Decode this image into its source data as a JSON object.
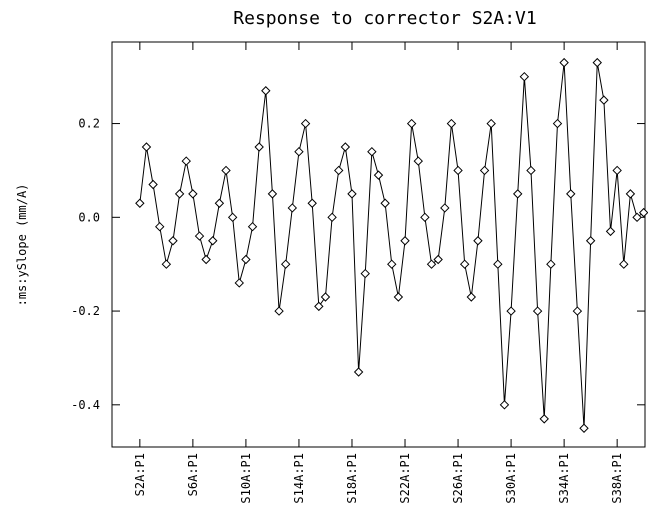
{
  "chart_data": {
    "type": "line",
    "title": "Response to corrector S2A:V1",
    "y_label": ":ms:ySlope (mm/A)",
    "x": [
      2,
      2.5,
      3,
      3.5,
      4,
      4.5,
      5,
      5.5,
      6,
      6.5,
      7,
      7.5,
      8,
      8.5,
      9,
      9.5,
      10,
      10.5,
      11,
      11.5,
      12,
      12.5,
      13,
      13.5,
      14,
      14.5,
      15,
      15.5,
      16,
      16.5,
      17,
      17.5,
      18,
      18.5,
      19,
      19.5,
      20,
      20.5,
      21,
      21.5,
      22,
      22.5,
      23,
      23.5,
      24,
      24.5,
      25,
      25.5,
      26,
      26.5,
      27,
      27.5,
      28,
      28.5,
      29,
      29.5,
      30,
      30.5,
      31,
      31.5,
      32,
      32.5,
      33,
      33.5,
      34,
      34.5,
      35,
      35.5,
      36,
      36.5,
      37,
      37.5,
      38,
      38.5,
      39,
      39.5,
      40
    ],
    "values": [
      0.03,
      0.15,
      0.07,
      -0.02,
      -0.1,
      -0.05,
      0.05,
      0.12,
      0.05,
      -0.04,
      -0.09,
      -0.05,
      0.03,
      0.1,
      0.0,
      -0.14,
      -0.09,
      -0.02,
      0.15,
      0.27,
      0.05,
      -0.2,
      -0.1,
      0.02,
      0.14,
      0.2,
      0.03,
      -0.19,
      -0.17,
      0.0,
      0.1,
      0.15,
      0.05,
      -0.33,
      -0.12,
      0.14,
      0.09,
      0.03,
      -0.1,
      -0.17,
      -0.05,
      0.2,
      0.12,
      0.0,
      -0.1,
      -0.09,
      0.02,
      0.2,
      0.1,
      -0.1,
      -0.17,
      -0.05,
      0.1,
      0.2,
      -0.1,
      -0.4,
      -0.2,
      0.05,
      0.3,
      0.1,
      -0.2,
      -0.43,
      -0.1,
      0.2,
      0.33,
      0.05,
      -0.2,
      -0.45,
      -0.05,
      0.33,
      0.25,
      -0.03,
      0.1,
      -0.1,
      0.05,
      0.0,
      0.01
    ],
    "color": "#000000",
    "xlim": [
      -0.1,
      40.1
    ],
    "xticks": [
      {
        "value": 2,
        "label": "S2A:P1"
      },
      {
        "value": 6,
        "label": "S6A:P1"
      },
      {
        "value": 10,
        "label": "S10A:P1"
      },
      {
        "value": 14,
        "label": "S14A:P1"
      },
      {
        "value": 18,
        "label": "S18A:P1"
      },
      {
        "value": 22,
        "label": "S22A:P1"
      },
      {
        "value": 26,
        "label": "S26A:P1"
      },
      {
        "value": 30,
        "label": "S30A:P1"
      },
      {
        "value": 34,
        "label": "S34A:P1"
      },
      {
        "value": 38,
        "label": "S38A:P1"
      }
    ],
    "ylim": [
      -0.49,
      0.374
    ],
    "yticks": [
      0.2,
      {
        "value": 0,
        "label": "0.0"
      },
      -0.2,
      -0.4
    ]
  }
}
